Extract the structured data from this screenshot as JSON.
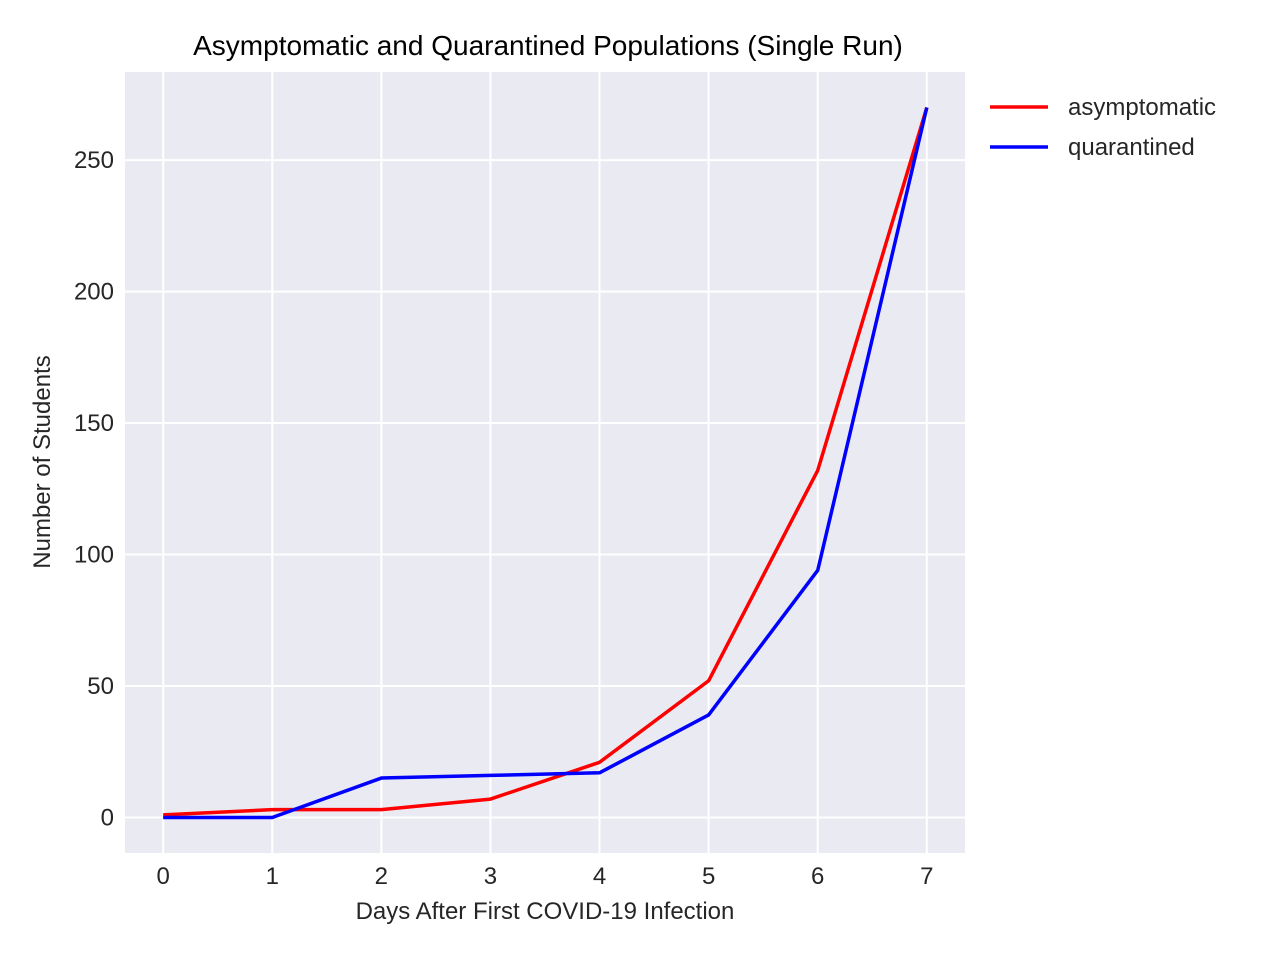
{
  "chart_data": {
    "type": "line",
    "title": "Asymptomatic and Quarantined Populations (Single Run)",
    "xlabel": "Days After First COVID-19 Infection",
    "ylabel": "Number of Students",
    "x": [
      0,
      1,
      2,
      3,
      4,
      5,
      6,
      7
    ],
    "xticks": [
      0,
      1,
      2,
      3,
      4,
      5,
      6,
      7
    ],
    "yticks": [
      0,
      50,
      100,
      150,
      200,
      250
    ],
    "xlim": [
      -0.35,
      7.35
    ],
    "ylim": [
      -13.5,
      283.5
    ],
    "grid": true,
    "legend_position": "outside top-right",
    "background_color": "#eaeaf2",
    "series": [
      {
        "name": "asymptomatic",
        "color": "#ff0000",
        "values": [
          1,
          3,
          3,
          7,
          21,
          52,
          132,
          270
        ]
      },
      {
        "name": "quarantined",
        "color": "#0000ff",
        "values": [
          0,
          0,
          15,
          16,
          17,
          39,
          94,
          270
        ]
      }
    ]
  }
}
